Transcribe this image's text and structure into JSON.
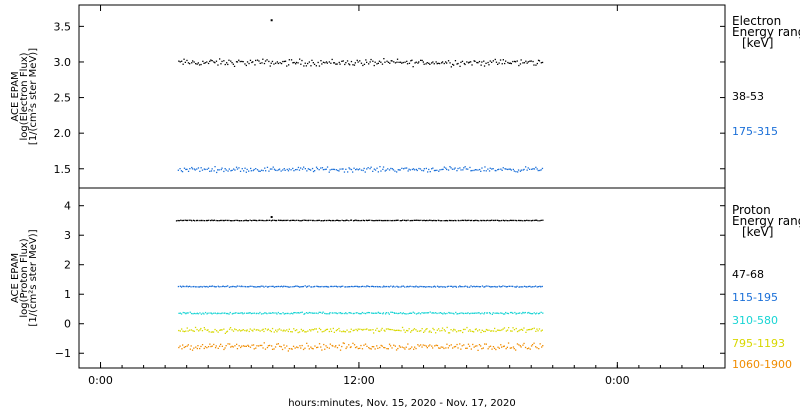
{
  "chart_data": {
    "type": "scatter",
    "xlabel": "hours:minutes, Nov. 15, 2020 - Nov. 17, 2020",
    "x_ticks": [
      "0:00",
      "12:00",
      "0:00"
    ],
    "x_tick_hours": [
      0,
      12,
      24
    ],
    "xlim_hours": [
      -1,
      29
    ],
    "data_x_range_hours": [
      3.6,
      20.5
    ],
    "panels": [
      {
        "ylabel": [
          "ACE EPAM",
          "log(Electron Flux)",
          "[1/(cm²s ster MeV)]"
        ],
        "ylim": [
          1.23,
          3.8
        ],
        "yticks": [
          1.5,
          2.0,
          2.5,
          3.0,
          3.5
        ],
        "ytick_labels": [
          "1.5",
          "2.0",
          "2.5",
          "3.0",
          "3.5"
        ],
        "legend_title": [
          "Electron",
          "Energy ranges",
          "[keV]"
        ],
        "series": [
          {
            "name": "38-53",
            "color": "#000000",
            "baseline": 3.0,
            "spread": 0.07,
            "x_range_hours": [
              3.6,
              20.5
            ]
          },
          {
            "name": "175-315",
            "color": "#1a6fd8",
            "baseline": 1.5,
            "spread": 0.05,
            "x_range_hours": [
              3.6,
              20.5
            ]
          }
        ],
        "outliers": [
          {
            "series": "38-53",
            "x_hour": 7.9,
            "y": 3.6
          }
        ]
      },
      {
        "ylabel": [
          "ACE EPAM",
          "log(Proton Flux)",
          "[1/(cm²s ster MeV)]"
        ],
        "ylim": [
          -1.5,
          4.6
        ],
        "yticks": [
          -1,
          0,
          1,
          2,
          3,
          4
        ],
        "ytick_labels": [
          "−1",
          "0",
          "1",
          "2",
          "3",
          "4"
        ],
        "legend_title": [
          "Proton",
          "Energy ranges",
          "[keV]"
        ],
        "series": [
          {
            "name": "47-68",
            "color": "#000000",
            "baseline": 3.52,
            "spread": 0.015,
            "x_range_hours": [
              3.5,
              20.5
            ]
          },
          {
            "name": "115-195",
            "color": "#1a6fd8",
            "baseline": 1.28,
            "spread": 0.03,
            "x_range_hours": [
              3.6,
              20.5
            ]
          },
          {
            "name": "310-580",
            "color": "#18d4d4",
            "baseline": 0.38,
            "spread": 0.05,
            "x_range_hours": [
              3.6,
              20.5
            ]
          },
          {
            "name": "795-1193",
            "color": "#d8d800",
            "baseline": -0.2,
            "spread": 0.12,
            "x_range_hours": [
              3.6,
              20.5
            ]
          },
          {
            "name": "1060-1900",
            "color": "#f08c00",
            "baseline": -0.75,
            "spread": 0.17,
            "x_range_hours": [
              3.6,
              20.5
            ]
          }
        ],
        "outliers": [
          {
            "series": "47-68",
            "x_hour": 7.9,
            "y": 3.65
          }
        ]
      }
    ]
  }
}
